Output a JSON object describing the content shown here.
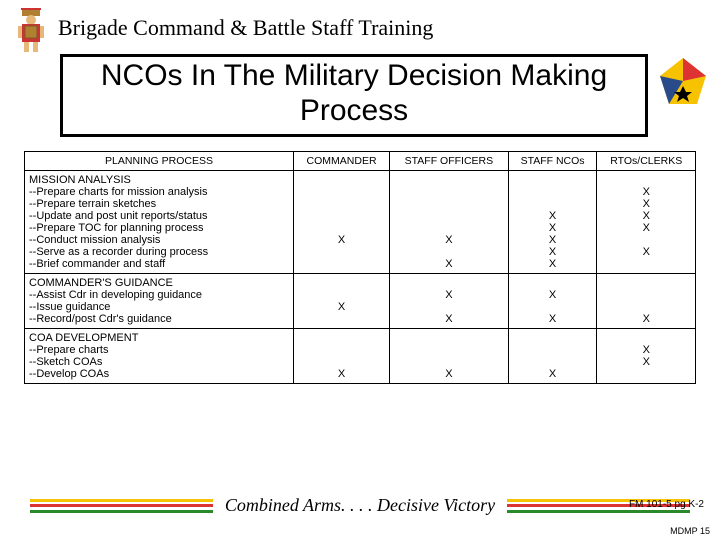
{
  "header": {
    "course_title": "Brigade Command & Battle Staff Training",
    "slide_title": "NCOs In The Military Decision Making Process"
  },
  "colors": {
    "stripe_yellow": "#f7c200",
    "stripe_red": "#d33",
    "stripe_green": "#2a8a2a",
    "border": "#000000",
    "background": "#ffffff",
    "crest_yellow": "#f7c200",
    "crest_red": "#d33",
    "crest_blue": "#2a4b8a"
  },
  "table": {
    "columns": [
      "PLANNING PROCESS",
      "COMMANDER",
      "STAFF OFFICERS",
      "STAFF NCOs",
      "RTOs/CLERKS"
    ],
    "sections": [
      {
        "title": "MISSION ANALYSIS",
        "lines": [
          "--Prepare charts for mission analysis",
          "--Prepare terrain sketches",
          "--Update and post unit reports/status",
          "--Prepare TOC for planning process",
          "--Conduct mission analysis",
          "--Serve as a recorder during process",
          "--Brief commander and staff"
        ],
        "commander": [
          "",
          "",
          "",
          "",
          "X",
          "",
          ""
        ],
        "staff_off": [
          "",
          "",
          "",
          "",
          "X",
          "",
          "X"
        ],
        "staff_nco": [
          "",
          "",
          "X",
          "X",
          "X",
          "X",
          "X"
        ],
        "rto": [
          "X",
          "X",
          "X",
          "X",
          "",
          "X",
          ""
        ]
      },
      {
        "title": "COMMANDER'S GUIDANCE",
        "lines": [
          "--Assist Cdr in developing guidance",
          "--Issue guidance",
          "--Record/post Cdr's guidance"
        ],
        "commander": [
          "",
          "X",
          ""
        ],
        "staff_off": [
          "X",
          "",
          "X"
        ],
        "staff_nco": [
          "X",
          "",
          "X"
        ],
        "rto": [
          "",
          "",
          "X"
        ]
      },
      {
        "title": "COA DEVELOPMENT",
        "lines": [
          "--Prepare charts",
          "--Sketch COAs",
          "--Develop COAs"
        ],
        "commander": [
          "",
          "",
          "X"
        ],
        "staff_off": [
          "",
          "",
          "X"
        ],
        "staff_nco": [
          "",
          "",
          "X"
        ],
        "rto": [
          "X",
          "X",
          ""
        ]
      }
    ]
  },
  "footer": {
    "motto": "Combined Arms. . . . Decisive Victory",
    "reference": "FM 101-5 pg K-2",
    "page": "MDMP 15"
  }
}
